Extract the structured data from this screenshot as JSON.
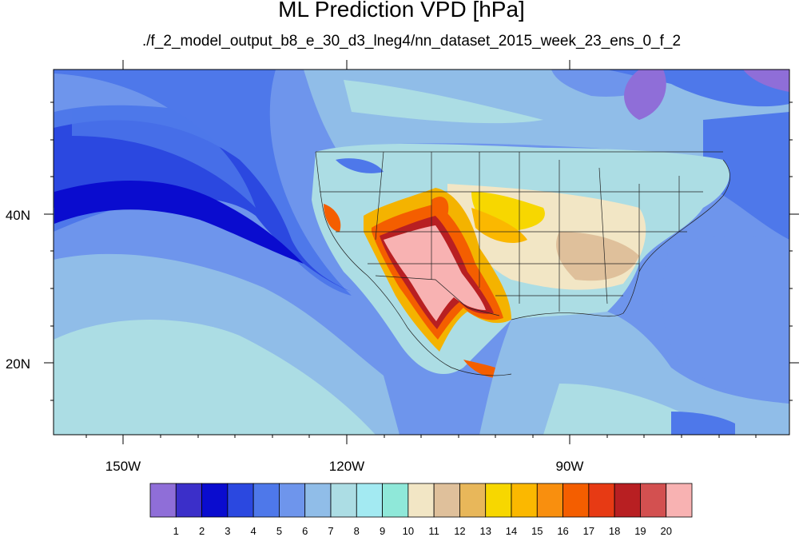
{
  "chart_data": {
    "type": "heatmap",
    "title": "ML Prediction VPD [hPa]",
    "subtitle": "./f_2_model_output_b8_e_30_d3_lneg4/nn_dataset_2015_week_23_ens_0_f_2",
    "xlabel": "",
    "ylabel": "",
    "x_ticks": [
      "150W",
      "120W",
      "90W"
    ],
    "y_ticks": [
      "40N",
      "20N"
    ],
    "lon_range": [
      -159.3,
      -60.7
    ],
    "lat_range": [
      11.4,
      59.2
    ],
    "colorbar": {
      "levels": [
        "1",
        "2",
        "3",
        "4",
        "5",
        "6",
        "7",
        "8",
        "9",
        "10",
        "11",
        "12",
        "13",
        "14",
        "15",
        "16",
        "17",
        "18",
        "19",
        "20"
      ],
      "colors": [
        "#8f6ed8",
        "#3b2fc9",
        "#0a0ccf",
        "#2b48e0",
        "#4e78ea",
        "#6e95ec",
        "#90bde8",
        "#acdde4",
        "#a3eaf2",
        "#8fe8d9",
        "#f2e6c5",
        "#dfc09b",
        "#e8b75a",
        "#f7d700",
        "#fbb800",
        "#f98f0e",
        "#f45e00",
        "#e73a14",
        "#b81f22",
        "#d35050",
        "#f8b2b2"
      ]
    },
    "grid": false
  }
}
